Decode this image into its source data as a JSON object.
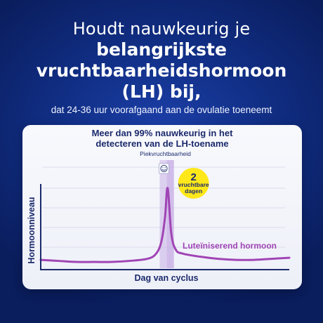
{
  "headline": {
    "line1": "Houdt nauwkeurig je",
    "line2": "belangrijkste",
    "line3": "vruchtbaarheidshormoon",
    "line4": "(LH) bij,",
    "subline": "dat 24-36 uur voorafgaand aan de ovulatie toeneemt"
  },
  "colors": {
    "background": "#112f86",
    "card": "#f4f5fb",
    "curve": "#a045b5",
    "peak_band": "#c9b1e6",
    "badge": "#ffe81a",
    "text_dark": "#1b2a6b"
  },
  "chart_data": {
    "type": "line",
    "title": "Meer dan 99% nauwkeurig in het detecteren van de LH-toename",
    "title_lines": [
      "Meer dan 99% nauwkeurig in het",
      "detecteren van de LH-toename"
    ],
    "xlabel": "Dag van cyclus",
    "ylabel": "Hormoonniveau",
    "xlim": [
      0,
      28
    ],
    "ylim": [
      0,
      100
    ],
    "grid": true,
    "series": [
      {
        "name": "Luteïniserend hormoon",
        "x": [
          0,
          2,
          4,
          6,
          8,
          10,
          12,
          13,
          13.6,
          14,
          14.3,
          14.7,
          15.2,
          16,
          18,
          20,
          22,
          24,
          26,
          28
        ],
        "y": [
          4,
          3,
          2,
          2,
          2,
          3,
          5,
          10,
          22,
          45,
          73,
          30,
          14,
          10,
          7,
          5,
          4,
          4,
          5,
          6
        ]
      }
    ],
    "peak": {
      "label": "Piekvruchtbaarheid",
      "icon": "smiley-icon",
      "x_start": 13.4,
      "x_end": 15.0,
      "inner_x_start": 14.2,
      "inner_x_end": 15.0
    },
    "badge": {
      "number": "2",
      "text_line1": "vruchtbare",
      "text_line2": "dagen"
    }
  }
}
